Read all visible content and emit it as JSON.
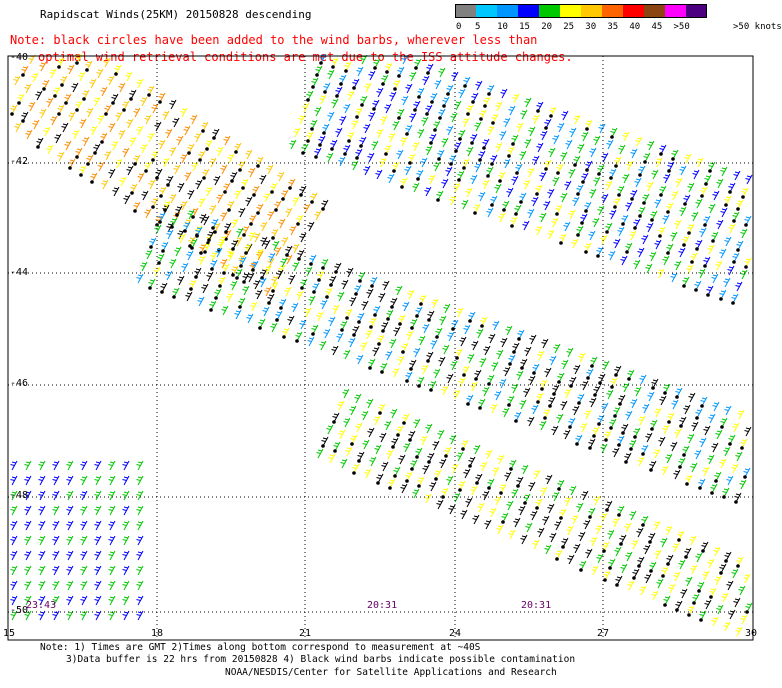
{
  "title": "Rapidscat Winds(25KM) 20150828 descending",
  "note": {
    "line1": "Note: black circles have been added to the wind barbs, wherever less than",
    "line2": "optimal wind retrieval conditions are met due to the ISS attitude changes."
  },
  "legend": {
    "units": ">50 knots",
    "labels": [
      "0",
      "5",
      "10",
      "15",
      "20",
      "25",
      "30",
      "35",
      "40",
      "45",
      ">50"
    ],
    "colors": [
      "#808080",
      "#00c8ff",
      "#0096ff",
      "#0000ff",
      "#00c800",
      "#ffff00",
      "#ffc800",
      "#ff6400",
      "#ff0000",
      "#8b4513",
      "#ff00ff",
      "#4b0082"
    ]
  },
  "map": {
    "lat_labels": [
      "-40",
      "-42",
      "-44",
      "-46",
      "-48",
      "-50"
    ],
    "lon_labels": [
      "15",
      "18",
      "21",
      "24",
      "27",
      "30"
    ],
    "times": [
      "23:43",
      "20:31",
      "20:31"
    ]
  },
  "footer": {
    "line1": "Note: 1) Times are GMT 2)Times along bottom correspond to measurement at ~40S",
    "line2": "3)Data buffer is 22 hrs from 20150828 4) Black wind barbs indicate possible contamination",
    "line3": "NOAA/NESDIS/Center for Satellite Applications and Research"
  }
}
